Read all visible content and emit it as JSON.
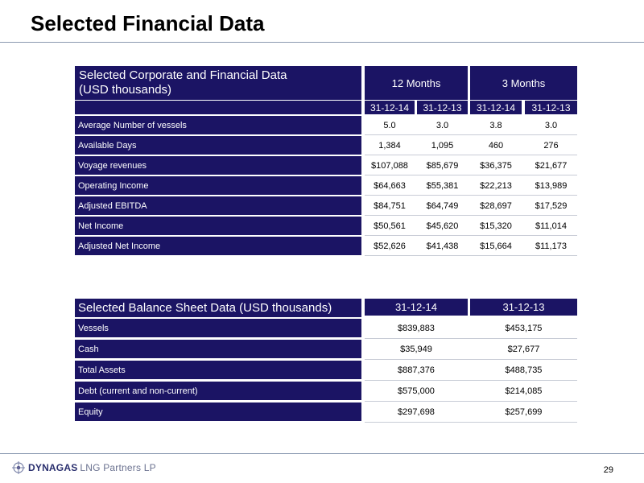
{
  "page": {
    "title": "Selected Financial Data",
    "page_number": "29"
  },
  "logo": {
    "brand": "DYNAGAS",
    "rest": "LNG Partners LP"
  },
  "corporate_table": {
    "title_line1": "Selected Corporate and Financial Data",
    "title_line2": "(USD thousands)",
    "group_12m": "12 Months",
    "group_3m": "3 Months",
    "dates": [
      "31-12-14",
      "31-12-13",
      "31-12-14",
      "31-12-13"
    ],
    "rows": [
      {
        "label": "Average Number of vessels",
        "values": [
          "5.0",
          "3.0",
          "3.8",
          "3.0"
        ]
      },
      {
        "label": "Available Days",
        "values": [
          "1,384",
          "1,095",
          "460",
          "276"
        ]
      },
      {
        "label": "Voyage revenues",
        "values": [
          "$107,088",
          "$85,679",
          "$36,375",
          "$21,677"
        ]
      },
      {
        "label": "Operating Income",
        "values": [
          "$64,663",
          "$55,381",
          "$22,213",
          "$13,989"
        ]
      },
      {
        "label": "Adjusted EBITDA",
        "values": [
          "$84,751",
          "$64,749",
          "$28,697",
          "$17,529"
        ]
      },
      {
        "label": "Net Income",
        "values": [
          "$50,561",
          "$45,620",
          "$15,320",
          "$11,014"
        ]
      },
      {
        "label": "Adjusted Net Income",
        "values": [
          "$52,626",
          "$41,438",
          "$15,664",
          "$11,173"
        ]
      }
    ]
  },
  "balance_table": {
    "title": "Selected Balance Sheet Data (USD thousands)",
    "dates": [
      "31-12-14",
      "31-12-13"
    ],
    "rows": [
      {
        "label": "Vessels",
        "values": [
          "$839,883",
          "$453,175"
        ]
      },
      {
        "label": "Cash",
        "values": [
          "$35,949",
          "$27,677"
        ]
      },
      {
        "label": "Total Assets",
        "values": [
          "$887,376",
          "$488,735"
        ]
      },
      {
        "label": "Debt (current and non-current)",
        "values": [
          "$575,000",
          "$214,085"
        ]
      },
      {
        "label": "Equity",
        "values": [
          "$297,698",
          "$257,699"
        ]
      }
    ]
  },
  "colors": {
    "header_navy": "#1b1464",
    "rule": "#8a99b0"
  }
}
